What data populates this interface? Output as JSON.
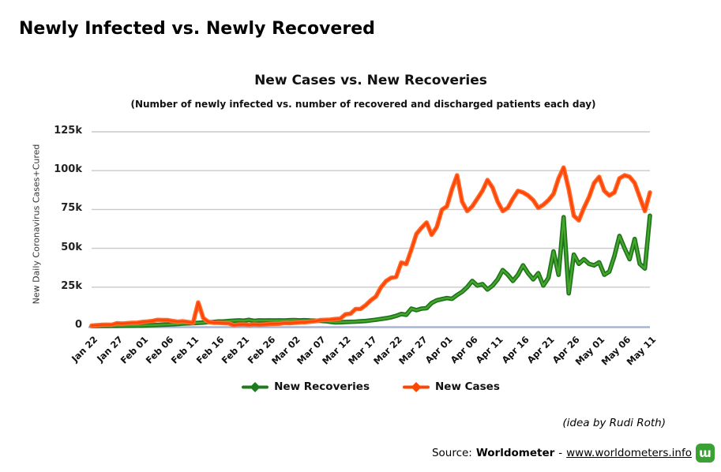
{
  "page": {
    "heading": "Newly Infected vs. Newly Recovered"
  },
  "colors": {
    "grid": "#C9C9C9",
    "axis_line": "#A9B3D4",
    "cases": "#FF4500",
    "recoveries": "#1E7C1E",
    "logo_green": "#3BA135",
    "text": "#000000"
  },
  "footer": {
    "credit": "(idea by Rudi Roth)",
    "source_prefix": "Source:",
    "source_name": "Worldometer",
    "source_separator": "-",
    "source_link": "www.worldometers.info",
    "logo_glyph": "ɯ"
  },
  "chart_data": {
    "type": "line",
    "title": "New Cases vs. New Recoveries",
    "subtitle": "(Number of newly infected vs. number of recovered and discharged patients each day)",
    "ylabel": "New Daily Coronavirus Cases+Cured",
    "ylim": [
      0,
      125000
    ],
    "grid": true,
    "legend_position": "bottom",
    "ytick_values": [
      0,
      25000,
      50000,
      75000,
      100000,
      125000
    ],
    "ytick_labels": [
      "0",
      "25k",
      "50k",
      "75k",
      "100k",
      "125k"
    ],
    "xtick_every": 5,
    "xtick_labels": [
      "Jan 22",
      "Jan 27",
      "Feb 01",
      "Feb 06",
      "Feb 11",
      "Feb 16",
      "Feb 21",
      "Feb 26",
      "Mar 02",
      "Mar 07",
      "Mar 12",
      "Mar 17",
      "Mar 22",
      "Mar 27",
      "Apr 01",
      "Apr 06",
      "Apr 11",
      "Apr 16",
      "Apr 21",
      "Apr 26",
      "May 01",
      "May 06",
      "May 11"
    ],
    "x_dates": [
      "Jan 22",
      "Jan 23",
      "Jan 24",
      "Jan 25",
      "Jan 26",
      "Jan 27",
      "Jan 28",
      "Jan 29",
      "Jan 30",
      "Jan 31",
      "Feb 01",
      "Feb 02",
      "Feb 03",
      "Feb 04",
      "Feb 05",
      "Feb 06",
      "Feb 07",
      "Feb 08",
      "Feb 09",
      "Feb 10",
      "Feb 11",
      "Feb 12",
      "Feb 13",
      "Feb 14",
      "Feb 15",
      "Feb 16",
      "Feb 17",
      "Feb 18",
      "Feb 19",
      "Feb 20",
      "Feb 21",
      "Feb 22",
      "Feb 23",
      "Feb 24",
      "Feb 25",
      "Feb 26",
      "Feb 27",
      "Feb 28",
      "Feb 29",
      "Mar 01",
      "Mar 02",
      "Mar 03",
      "Mar 04",
      "Mar 05",
      "Mar 06",
      "Mar 07",
      "Mar 08",
      "Mar 09",
      "Mar 10",
      "Mar 11",
      "Mar 12",
      "Mar 13",
      "Mar 14",
      "Mar 15",
      "Mar 16",
      "Mar 17",
      "Mar 18",
      "Mar 19",
      "Mar 20",
      "Mar 21",
      "Mar 22",
      "Mar 23",
      "Mar 24",
      "Mar 25",
      "Mar 26",
      "Mar 27",
      "Mar 28",
      "Mar 29",
      "Mar 30",
      "Mar 31",
      "Apr 01",
      "Apr 02",
      "Apr 03",
      "Apr 04",
      "Apr 05",
      "Apr 06",
      "Apr 07",
      "Apr 08",
      "Apr 09",
      "Apr 10",
      "Apr 11",
      "Apr 12",
      "Apr 13",
      "Apr 14",
      "Apr 15",
      "Apr 16",
      "Apr 17",
      "Apr 18",
      "Apr 19",
      "Apr 20",
      "Apr 21",
      "Apr 22",
      "Apr 23",
      "Apr 24",
      "Apr 25",
      "Apr 26",
      "Apr 27",
      "Apr 28",
      "Apr 29",
      "Apr 30",
      "May 01",
      "May 02",
      "May 03",
      "May 04",
      "May 05",
      "May 06",
      "May 07",
      "May 08",
      "May 09",
      "May 10",
      "May 11"
    ],
    "series": [
      {
        "name": "New Recoveries",
        "color": "#1E7C1E",
        "stroke_outer": "#1B731B",
        "stroke_inner": "#4FAE2E",
        "values": [
          30,
          30,
          40,
          60,
          80,
          110,
          150,
          180,
          200,
          250,
          300,
          400,
          500,
          650,
          800,
          900,
          1100,
          1300,
          1500,
          1700,
          1800,
          2000,
          2200,
          2500,
          2600,
          2900,
          2900,
          3200,
          3400,
          3600,
          3400,
          3900,
          3300,
          3600,
          3500,
          3600,
          3500,
          3600,
          3500,
          3700,
          3800,
          3600,
          3700,
          3500,
          3400,
          3300,
          3100,
          2700,
          2300,
          2400,
          2600,
          2700,
          2800,
          3000,
          3200,
          3600,
          4000,
          4500,
          5000,
          5600,
          6500,
          7700,
          7200,
          11200,
          10200,
          11200,
          11500,
          14800,
          16500,
          17300,
          18000,
          17500,
          19900,
          22000,
          25000,
          29000,
          26000,
          27000,
          23500,
          26000,
          30000,
          36000,
          33000,
          29000,
          33000,
          39000,
          34000,
          30000,
          34000,
          26000,
          31000,
          48000,
          33000,
          70000,
          21000,
          46000,
          40000,
          43000,
          40000,
          39000,
          41000,
          33000,
          35000,
          45000,
          58000,
          50000,
          43000,
          56000,
          40000,
          37000,
          71000
        ]
      },
      {
        "name": "New Cases",
        "color": "#FF4500",
        "stroke_outer": "#FF6A2A",
        "stroke_inner": "#FF3D00",
        "values": [
          250,
          450,
          700,
          800,
          780,
          1800,
          1500,
          1800,
          2000,
          2100,
          2600,
          2850,
          3250,
          3900,
          3750,
          3750,
          3200,
          2700,
          3000,
          2550,
          2050,
          15150,
          5100,
          2650,
          2100,
          2050,
          1900,
          1750,
          550,
          900,
          1000,
          650,
          1000,
          750,
          950,
          1250,
          1400,
          1450,
          1950,
          1800,
          2050,
          2350,
          2450,
          2750,
          3050,
          3750,
          3900,
          4050,
          4450,
          4700,
          7500,
          7900,
          10900,
          11000,
          13400,
          16500,
          18900,
          24900,
          28900,
          31000,
          31500,
          40800,
          39900,
          49200,
          59300,
          63200,
          66600,
          58700,
          63700,
          74800,
          77000,
          88000,
          97000,
          80000,
          74000,
          77000,
          82000,
          87000,
          94000,
          89000,
          80000,
          74000,
          76000,
          82000,
          87000,
          86000,
          84000,
          81000,
          76000,
          78000,
          81000,
          85000,
          95000,
          102000,
          88000,
          71000,
          68000,
          76000,
          83000,
          92000,
          96000,
          87000,
          84000,
          86000,
          95000,
          97000,
          96000,
          92000,
          83000,
          74000,
          86000
        ]
      }
    ]
  }
}
